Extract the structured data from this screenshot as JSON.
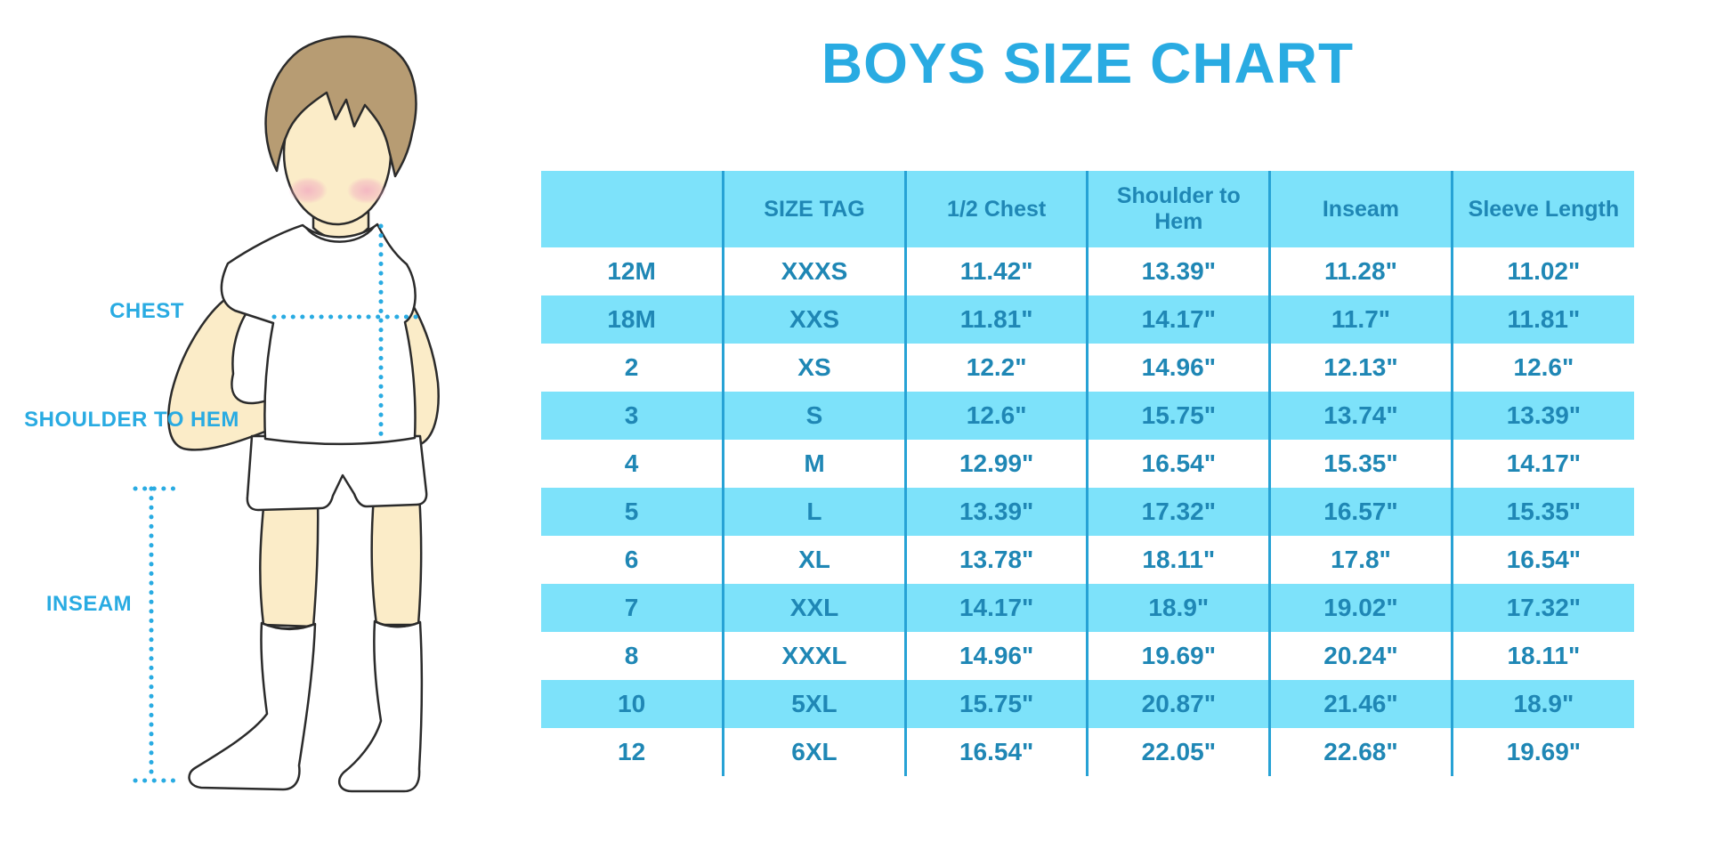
{
  "title": "BOYS SIZE CHART",
  "colors": {
    "accent": "#29ABE2",
    "table_text": "#1F87B5",
    "row_alt_bg": "#7DE2FA",
    "column_line": "#27A2D5",
    "skin": "#FBECC8",
    "hair": "#B79C73",
    "blush": "#F2AFC1",
    "outline": "#2B2B2B"
  },
  "figure": {
    "chest_label": "CHEST",
    "shoulder_to_hem_label": "SHOULDER TO HEM",
    "inseam_label": "INSEAM"
  },
  "chart_data": {
    "type": "table",
    "title": "BOYS SIZE CHART",
    "columns": [
      "",
      "SIZE TAG",
      "1/2 Chest",
      "Shoulder to Hem",
      "Inseam",
      "Sleeve Length"
    ],
    "rows": [
      [
        "12M",
        "XXXS",
        "11.42\"",
        "13.39\"",
        "11.28\"",
        "11.02\""
      ],
      [
        "18M",
        "XXS",
        "11.81\"",
        "14.17\"",
        "11.7\"",
        "11.81\""
      ],
      [
        "2",
        "XS",
        "12.2\"",
        "14.96\"",
        "12.13\"",
        "12.6\""
      ],
      [
        "3",
        "S",
        "12.6\"",
        "15.75\"",
        "13.74\"",
        "13.39\""
      ],
      [
        "4",
        "M",
        "12.99\"",
        "16.54\"",
        "15.35\"",
        "14.17\""
      ],
      [
        "5",
        "L",
        "13.39\"",
        "17.32\"",
        "16.57\"",
        "15.35\""
      ],
      [
        "6",
        "XL",
        "13.78\"",
        "18.11\"",
        "17.8\"",
        "16.54\""
      ],
      [
        "7",
        "XXL",
        "14.17\"",
        "18.9\"",
        "19.02\"",
        "17.32\""
      ],
      [
        "8",
        "XXXL",
        "14.96\"",
        "19.69\"",
        "20.24\"",
        "18.11\""
      ],
      [
        "10",
        "5XL",
        "15.75\"",
        "20.87\"",
        "21.46\"",
        "18.9\""
      ],
      [
        "12",
        "6XL",
        "16.54\"",
        "22.05\"",
        "22.68\"",
        "19.69\""
      ]
    ]
  }
}
